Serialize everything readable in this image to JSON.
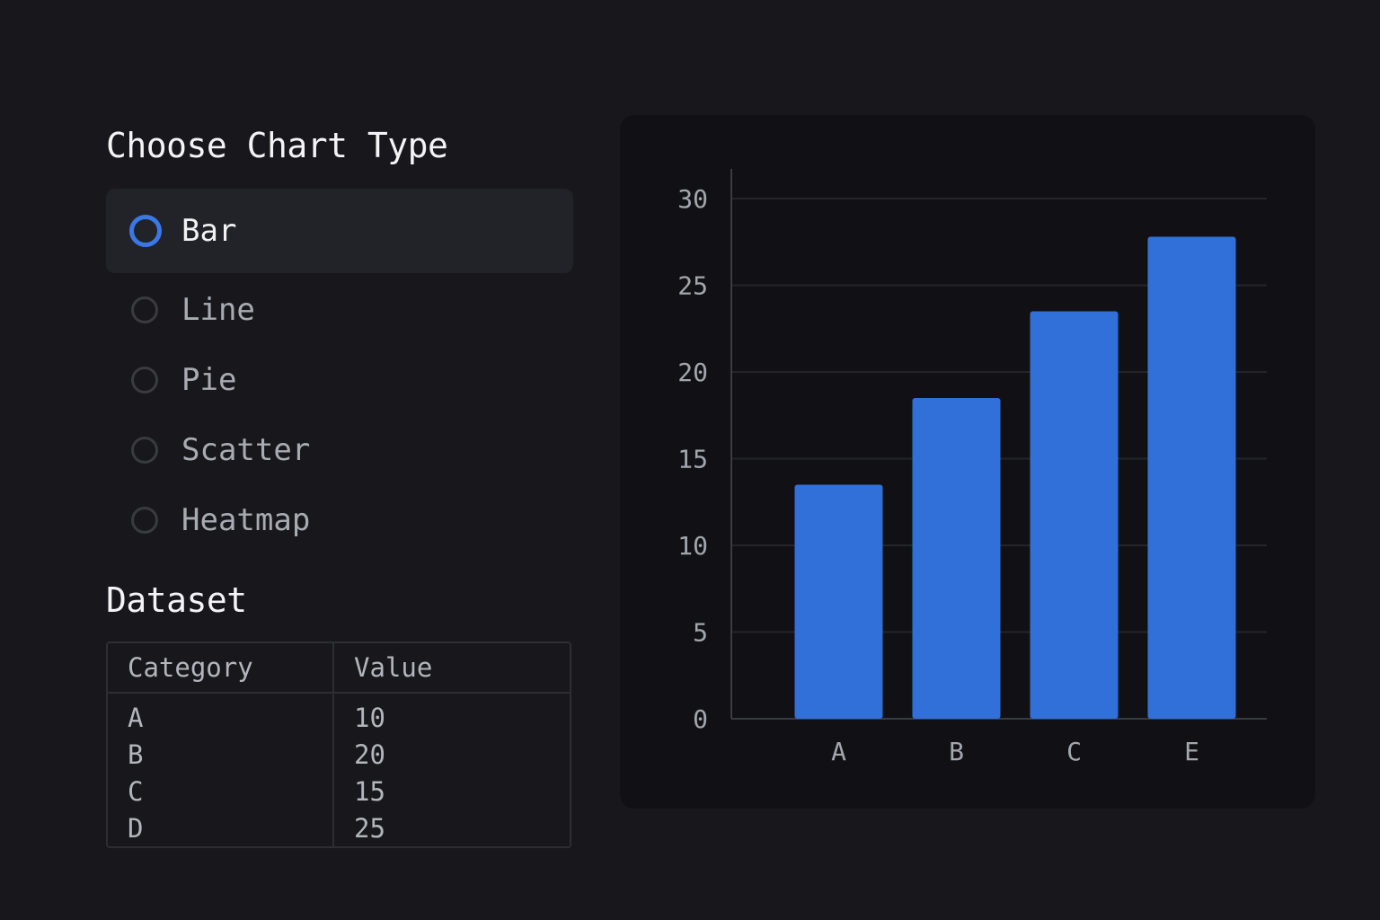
{
  "chart_type_section": {
    "title": "Choose Chart Type",
    "options": [
      "Bar",
      "Line",
      "Pie",
      "Scatter",
      "Heatmap"
    ],
    "selected": "Bar"
  },
  "dataset_section": {
    "title": "Dataset",
    "columns": [
      "Category",
      "Value"
    ],
    "rows": [
      [
        "A",
        "10"
      ],
      [
        "B",
        "20"
      ],
      [
        "C",
        "15"
      ],
      [
        "D",
        "25"
      ]
    ]
  },
  "colors": {
    "accent": "#3a78e6",
    "bar": "#3170d9",
    "background": "#18181c",
    "panel": "#111115"
  },
  "chart_data": {
    "type": "bar",
    "categories": [
      "A",
      "B",
      "C",
      "E"
    ],
    "values": [
      13.5,
      18.5,
      23.5,
      27.8
    ],
    "title": "",
    "xlabel": "",
    "ylabel": "",
    "ylim": [
      0,
      30
    ],
    "yticks": [
      0,
      5,
      10,
      15,
      20,
      25,
      30
    ],
    "grid": true
  }
}
